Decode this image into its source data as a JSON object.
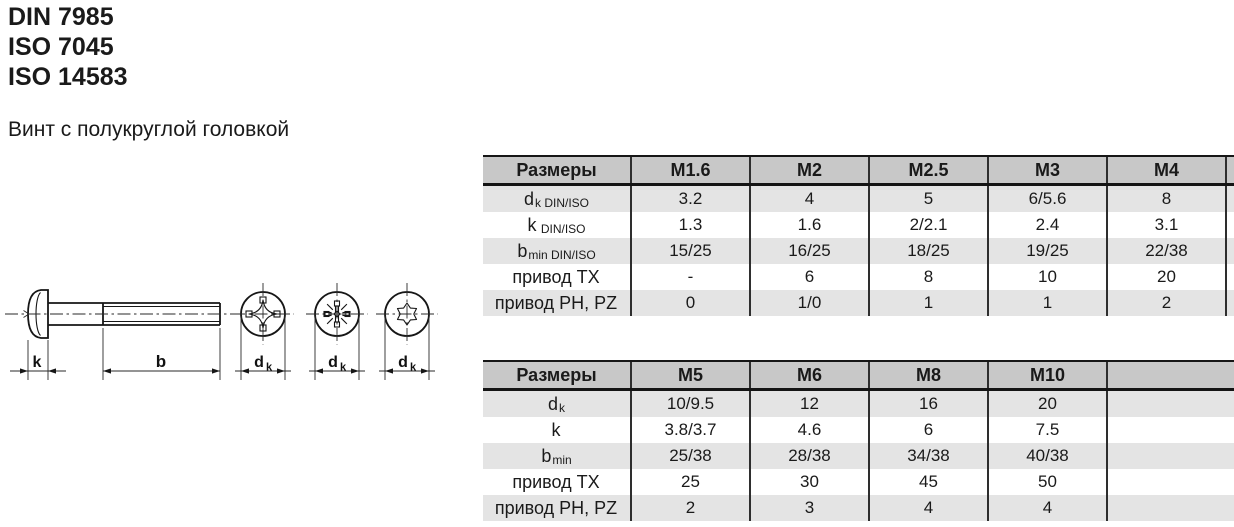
{
  "page": {
    "titles": [
      "DIN 7985",
      "ISO 7045",
      "ISO 14583"
    ],
    "subtitle": "Винт с полукруглой головкой"
  },
  "colors": {
    "table_header_bg": "#c8c8c8",
    "table_band_bg": "#e4e4e4",
    "table_border": "#161616",
    "line_color": "#161616",
    "text_color": "#1a1a1a"
  },
  "drawing": {
    "views": [
      "side-view",
      "phillips-recess",
      "pozidriv-recess",
      "torx-recess"
    ],
    "dim_k": "k",
    "dim_b": "b",
    "dk_base": "d",
    "dk_sub": "k"
  },
  "tables": [
    {
      "name": "sizes-m1.6-m4",
      "headers": [
        "Размеры",
        "M1.6",
        "M2",
        "M2.5",
        "M3",
        "M4"
      ],
      "rows": [
        {
          "label_base": "d",
          "label_sub": "k DIN/ISO",
          "values": [
            "3.2",
            "4",
            "5",
            "6/5.6",
            "8"
          ]
        },
        {
          "label_base": "k",
          "label_sub": " DIN/ISO",
          "values": [
            "1.3",
            "1.6",
            "2/2.1",
            "2.4",
            "3.1"
          ]
        },
        {
          "label_base": "b",
          "label_sub": "min DIN/ISO",
          "values": [
            "15/25",
            "16/25",
            "18/25",
            "19/25",
            "22/38"
          ]
        },
        {
          "label_base": "привод TX",
          "label_sub": "",
          "values": [
            "-",
            "6",
            "8",
            "10",
            "20"
          ]
        },
        {
          "label_base": "привод PH, PZ",
          "label_sub": "",
          "values": [
            "0",
            "1/0",
            "1",
            "1",
            "2"
          ]
        }
      ]
    },
    {
      "name": "sizes-m5-m10",
      "headers": [
        "Размеры",
        "M5",
        "M6",
        "M8",
        "M10"
      ],
      "rows": [
        {
          "label_base": "d",
          "label_sub": "k",
          "values": [
            "10/9.5",
            "12",
            "16",
            "20"
          ]
        },
        {
          "label_base": "k",
          "label_sub": "",
          "values": [
            "3.8/3.7",
            "4.6",
            "6",
            "7.5"
          ]
        },
        {
          "label_base": "b",
          "label_sub": "min",
          "values": [
            "25/38",
            "28/38",
            "34/38",
            "40/38"
          ]
        },
        {
          "label_base": "привод TX",
          "label_sub": "",
          "values": [
            "25",
            "30",
            "45",
            "50"
          ]
        },
        {
          "label_base": "привод PH, PZ",
          "label_sub": "",
          "values": [
            "2",
            "3",
            "4",
            "4"
          ]
        }
      ]
    }
  ]
}
